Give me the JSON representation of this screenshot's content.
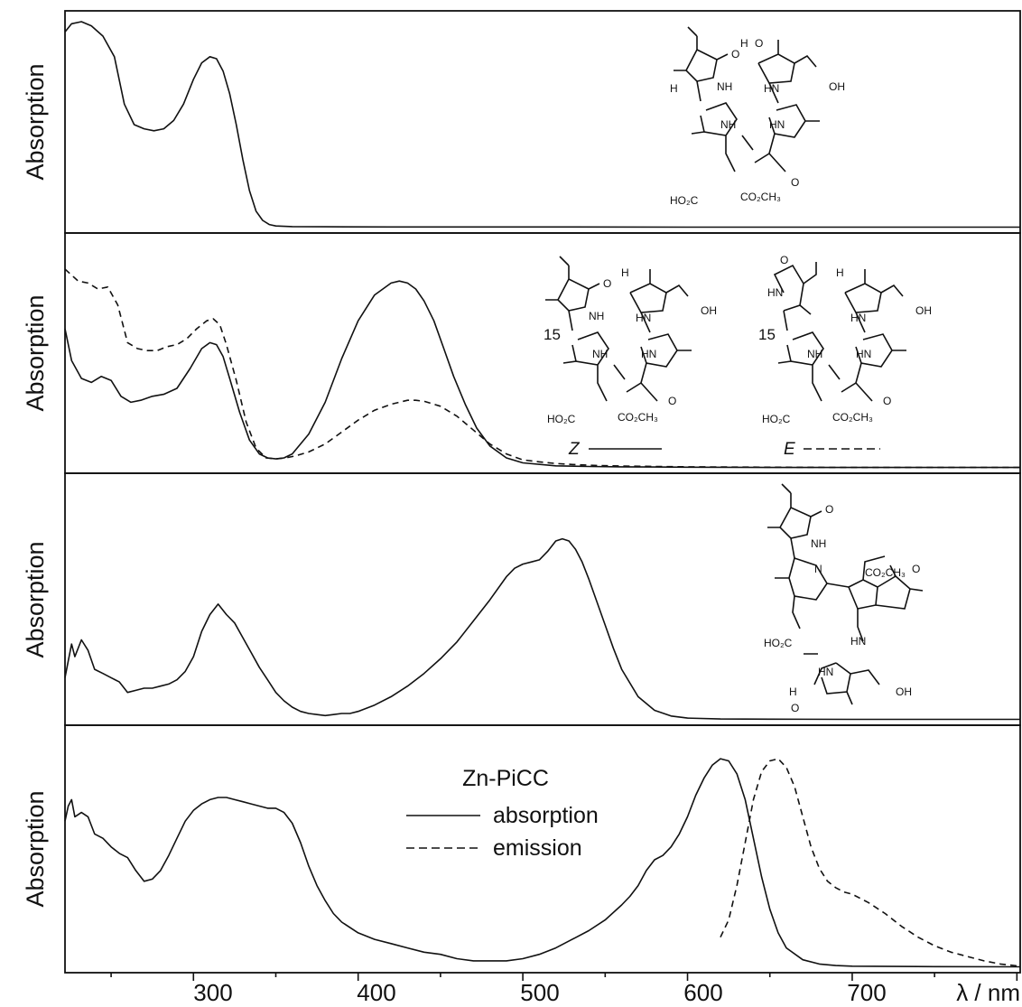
{
  "chart_data": [
    {
      "type": "line",
      "ylabel": "Absorption",
      "xlim": [
        222,
        802
      ],
      "ylim": [
        0,
        1.0
      ],
      "series": [
        {
          "style": "solid",
          "x": [
            222,
            226,
            232,
            238,
            245,
            252,
            258,
            264,
            270,
            276,
            282,
            288,
            294,
            300,
            305,
            310,
            314,
            318,
            322,
            326,
            330,
            334,
            338,
            342,
            346,
            350,
            355,
            360,
            380,
            420,
            500,
            600,
            700,
            802
          ],
          "y": [
            0.95,
            0.99,
            1.0,
            0.98,
            0.93,
            0.83,
            0.6,
            0.5,
            0.48,
            0.47,
            0.48,
            0.52,
            0.6,
            0.72,
            0.8,
            0.83,
            0.82,
            0.76,
            0.65,
            0.5,
            0.33,
            0.18,
            0.08,
            0.035,
            0.015,
            0.008,
            0.006,
            0.005,
            0.004,
            0.003,
            0.003,
            0.002,
            0.002,
            0.002
          ]
        }
      ]
    },
    {
      "type": "line",
      "ylabel": "Absorption",
      "xlim": [
        222,
        802
      ],
      "ylim": [
        0,
        1.0
      ],
      "series": [
        {
          "style": "solid",
          "x": [
            222,
            226,
            232,
            238,
            244,
            250,
            256,
            262,
            268,
            275,
            282,
            290,
            298,
            305,
            310,
            314,
            318,
            322,
            328,
            334,
            340,
            345,
            350,
            355,
            360,
            370,
            380,
            390,
            400,
            410,
            420,
            425,
            430,
            435,
            440,
            446,
            452,
            458,
            465,
            472,
            480,
            490,
            500,
            520,
            540,
            560,
            580,
            600,
            650,
            700,
            802
          ],
          "y": [
            0.7,
            0.54,
            0.45,
            0.43,
            0.46,
            0.44,
            0.36,
            0.33,
            0.34,
            0.36,
            0.37,
            0.4,
            0.5,
            0.6,
            0.63,
            0.62,
            0.56,
            0.45,
            0.28,
            0.14,
            0.07,
            0.05,
            0.045,
            0.05,
            0.07,
            0.17,
            0.33,
            0.55,
            0.74,
            0.87,
            0.93,
            0.94,
            0.93,
            0.9,
            0.84,
            0.74,
            0.6,
            0.46,
            0.32,
            0.2,
            0.11,
            0.05,
            0.025,
            0.01,
            0.007,
            0.005,
            0.004,
            0.003,
            0.002,
            0.002,
            0.002
          ]
        },
        {
          "style": "dashed",
          "x": [
            222,
            226,
            230,
            236,
            242,
            248,
            254,
            260,
            266,
            272,
            278,
            284,
            290,
            296,
            302,
            308,
            312,
            316,
            320,
            326,
            332,
            338,
            344,
            350,
            356,
            362,
            370,
            380,
            390,
            400,
            410,
            420,
            430,
            435,
            440,
            450,
            460,
            470,
            480,
            490,
            500,
            510,
            520,
            530,
            545,
            560,
            580,
            600,
            650,
            700,
            802
          ],
          "y": [
            1.0,
            0.97,
            0.94,
            0.93,
            0.9,
            0.91,
            0.82,
            0.63,
            0.6,
            0.59,
            0.59,
            0.61,
            0.62,
            0.65,
            0.7,
            0.74,
            0.75,
            0.72,
            0.62,
            0.44,
            0.23,
            0.1,
            0.05,
            0.045,
            0.05,
            0.06,
            0.08,
            0.12,
            0.18,
            0.24,
            0.29,
            0.32,
            0.34,
            0.34,
            0.335,
            0.31,
            0.26,
            0.19,
            0.12,
            0.07,
            0.04,
            0.03,
            0.022,
            0.017,
            0.012,
            0.009,
            0.007,
            0.005,
            0.003,
            0.002,
            0.002
          ]
        }
      ]
    },
    {
      "type": "line",
      "ylabel": "Absorption",
      "xlim": [
        222,
        802
      ],
      "ylim": [
        0,
        1.0
      ],
      "series": [
        {
          "style": "solid",
          "x": [
            222,
            224,
            226,
            228,
            232,
            236,
            240,
            245,
            250,
            255,
            260,
            265,
            270,
            275,
            280,
            285,
            290,
            295,
            300,
            305,
            310,
            315,
            320,
            325,
            330,
            335,
            340,
            345,
            350,
            355,
            360,
            365,
            370,
            375,
            380,
            385,
            390,
            395,
            400,
            410,
            420,
            430,
            440,
            450,
            460,
            470,
            480,
            490,
            495,
            500,
            505,
            510,
            515,
            520,
            524,
            528,
            532,
            536,
            540,
            545,
            550,
            555,
            560,
            570,
            580,
            590,
            600,
            620,
            650,
            700,
            750,
            802
          ],
          "y": [
            0.2,
            0.28,
            0.36,
            0.3,
            0.38,
            0.33,
            0.24,
            0.22,
            0.2,
            0.18,
            0.13,
            0.14,
            0.15,
            0.15,
            0.16,
            0.17,
            0.19,
            0.23,
            0.3,
            0.42,
            0.5,
            0.55,
            0.5,
            0.46,
            0.39,
            0.32,
            0.25,
            0.19,
            0.13,
            0.09,
            0.06,
            0.04,
            0.03,
            0.025,
            0.02,
            0.025,
            0.03,
            0.03,
            0.04,
            0.07,
            0.11,
            0.16,
            0.22,
            0.29,
            0.37,
            0.47,
            0.57,
            0.68,
            0.72,
            0.74,
            0.75,
            0.76,
            0.8,
            0.85,
            0.86,
            0.85,
            0.81,
            0.75,
            0.67,
            0.56,
            0.45,
            0.34,
            0.24,
            0.11,
            0.045,
            0.018,
            0.008,
            0.004,
            0.003,
            0.002,
            0.002,
            0.002
          ]
        }
      ]
    },
    {
      "type": "line",
      "ylabel": "Absorption",
      "xlim": [
        222,
        802
      ],
      "ylim": [
        0,
        1.0
      ],
      "series": [
        {
          "name": "absorption",
          "style": "solid",
          "x": [
            222,
            224,
            226,
            228,
            232,
            236,
            240,
            245,
            250,
            255,
            260,
            265,
            270,
            275,
            280,
            285,
            290,
            295,
            300,
            305,
            310,
            315,
            320,
            325,
            330,
            335,
            340,
            345,
            350,
            355,
            360,
            365,
            370,
            375,
            380,
            385,
            390,
            400,
            410,
            420,
            430,
            440,
            450,
            460,
            470,
            480,
            490,
            500,
            510,
            520,
            530,
            540,
            550,
            560,
            565,
            570,
            575,
            580,
            585,
            590,
            595,
            600,
            605,
            610,
            615,
            620,
            625,
            630,
            635,
            640,
            645,
            650,
            655,
            660,
            670,
            680,
            690,
            700,
            750,
            802
          ],
          "y": [
            0.68,
            0.75,
            0.78,
            0.7,
            0.72,
            0.7,
            0.62,
            0.6,
            0.56,
            0.53,
            0.51,
            0.45,
            0.4,
            0.41,
            0.45,
            0.52,
            0.6,
            0.68,
            0.73,
            0.76,
            0.78,
            0.79,
            0.79,
            0.78,
            0.77,
            0.76,
            0.75,
            0.74,
            0.74,
            0.72,
            0.67,
            0.58,
            0.47,
            0.38,
            0.31,
            0.25,
            0.21,
            0.16,
            0.13,
            0.11,
            0.09,
            0.07,
            0.06,
            0.04,
            0.03,
            0.03,
            0.03,
            0.04,
            0.06,
            0.09,
            0.13,
            0.17,
            0.22,
            0.29,
            0.33,
            0.38,
            0.45,
            0.5,
            0.52,
            0.56,
            0.62,
            0.7,
            0.8,
            0.88,
            0.94,
            0.97,
            0.96,
            0.9,
            0.78,
            0.6,
            0.42,
            0.27,
            0.16,
            0.09,
            0.035,
            0.015,
            0.008,
            0.005,
            0.003,
            0.002
          ]
        },
        {
          "name": "emission",
          "style": "dashed",
          "x": [
            620,
            625,
            630,
            635,
            640,
            645,
            650,
            655,
            660,
            665,
            670,
            675,
            680,
            685,
            690,
            695,
            700,
            705,
            710,
            720,
            730,
            740,
            750,
            760,
            770,
            780,
            790,
            802
          ],
          "y": [
            0.14,
            0.22,
            0.38,
            0.58,
            0.78,
            0.91,
            0.96,
            0.97,
            0.93,
            0.84,
            0.7,
            0.56,
            0.46,
            0.4,
            0.37,
            0.35,
            0.34,
            0.32,
            0.3,
            0.25,
            0.19,
            0.14,
            0.1,
            0.07,
            0.05,
            0.03,
            0.015,
            0.005
          ]
        }
      ]
    }
  ],
  "axes": {
    "x_ticks": [
      "300",
      "400",
      "500",
      "600",
      "700"
    ],
    "x_unit_label": "λ / nm",
    "ylabel": "Absorption"
  },
  "labels": {
    "panel2_isomer_z": "Z",
    "panel2_isomer_e": "E",
    "panel2_position": "15",
    "panel4_title": "Zn-PiCC",
    "panel4_absorption": "absorption",
    "panel4_emission": "emission"
  },
  "chem_text": {
    "co2ch3": "CO₂CH₃",
    "ho2c": "HO₂C",
    "nh": "NH",
    "hn": "HN",
    "n": "N",
    "oh": "OH",
    "o": "O",
    "h": "H"
  }
}
